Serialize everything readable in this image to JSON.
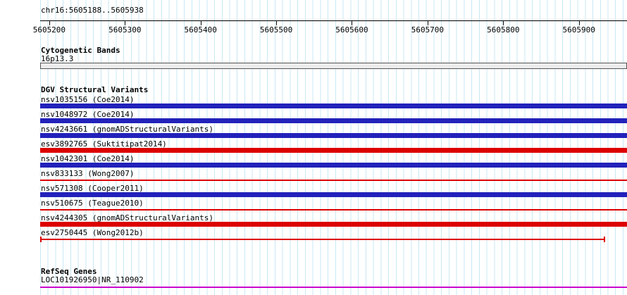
{
  "header": {
    "region_label": "chr16:5605188..5605938"
  },
  "region": {
    "start": 5605188,
    "end": 5605938
  },
  "ruler": {
    "tick_labels": [
      "5605200",
      "5605300",
      "5605400",
      "5605500",
      "5605600",
      "5605700",
      "5605800",
      "5605900"
    ]
  },
  "cytogenetic": {
    "title": "Cytogenetic Bands",
    "band_label": "16p13.3"
  },
  "dgv": {
    "title": "DGV Structural Variants",
    "variants": [
      {
        "label": "nsv1035156 (Coe2014)",
        "glyph": "thick",
        "color": "blue"
      },
      {
        "label": "nsv1048972 (Coe2014)",
        "glyph": "thick",
        "color": "blue"
      },
      {
        "label": "nsv4243661 (gnomADStructuralVariants)",
        "glyph": "thick",
        "color": "blue"
      },
      {
        "label": "esv3892765 (Suktitipat2014)",
        "glyph": "thick",
        "color": "red"
      },
      {
        "label": "nsv1042301 (Coe2014)",
        "glyph": "thick",
        "color": "blue"
      },
      {
        "label": "nsv833133 (Wong2007)",
        "glyph": "thin",
        "color": "red"
      },
      {
        "label": "nsv571308 (Cooper2011)",
        "glyph": "thick",
        "color": "blue"
      },
      {
        "label": "nsv510675 (Teague2010)",
        "glyph": "thin",
        "color": "red"
      },
      {
        "label": "nsv4244305 (gnomADStructuralVariants)",
        "glyph": "thick",
        "color": "red"
      },
      {
        "label": "esv2750445 (Wong2012b)",
        "glyph": "thin-capped",
        "color": "red"
      }
    ]
  },
  "refseq": {
    "title": "RefSeq Genes",
    "gene_label": "LOC101926950|NR_110902"
  },
  "colors": {
    "variant_blue": "#2222bb",
    "variant_red": "#dd0000",
    "gene_magenta": "#cc00cc",
    "gridline": "#c9e8f4"
  }
}
